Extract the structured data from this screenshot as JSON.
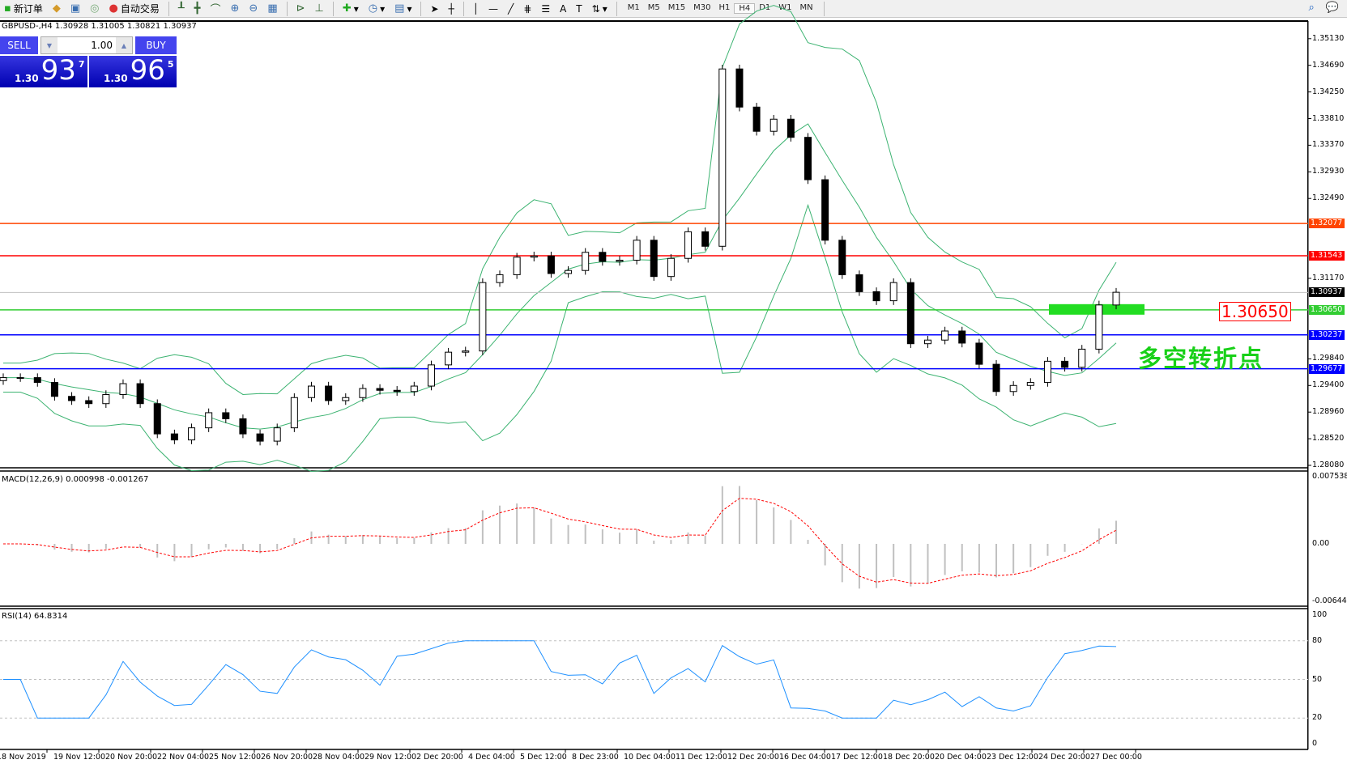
{
  "toolbar": {
    "new_order": "新订单",
    "auto_trading": "自动交易",
    "timeframes": [
      "M1",
      "M5",
      "M15",
      "M30",
      "H1",
      "H4",
      "D1",
      "W1",
      "MN"
    ],
    "active_timeframe": "H4"
  },
  "chart": {
    "symbol_header": "GBPUSD-,H4  1.30928 1.31005 1.30821 1.30937",
    "sell_label": "SELL",
    "buy_label": "BUY",
    "lot": "1.00",
    "sell_price": {
      "prefix": "1.30",
      "big": "93",
      "sup": "7"
    },
    "buy_price": {
      "prefix": "1.30",
      "big": "96",
      "sup": "5"
    },
    "annotation_price": "1.30650",
    "annotation_text": "多空转折点",
    "macd_label": "MACD(12,26,9) 0.000998 -0.001267",
    "rsi_label": "RSI(14) 64.8314"
  },
  "chart_data": {
    "type": "candlestick",
    "symbol": "GBPUSD",
    "timeframe": "H4",
    "closes": [
      1.2953,
      1.2953,
      1.2945,
      1.2922,
      1.2915,
      1.291,
      1.2925,
      1.2943,
      1.291,
      1.286,
      1.285,
      1.287,
      1.2895,
      1.2885,
      1.286,
      1.2848,
      1.287,
      1.292,
      1.2939,
      1.2915,
      1.292,
      1.2935,
      1.2932,
      1.293,
      1.2939,
      1.2974,
      1.2995,
      1.2997,
      1.311,
      1.3123,
      1.3152,
      1.3154,
      1.3125,
      1.313,
      1.316,
      1.3145,
      1.3147,
      1.318,
      1.312,
      1.315,
      1.3194,
      1.317,
      1.3463,
      1.34,
      1.336,
      1.338,
      1.335,
      1.328,
      1.318,
      1.3123,
      1.3095,
      1.308,
      1.311,
      1.3009,
      1.3015,
      1.303,
      1.301,
      1.2975,
      1.293,
      1.294,
      1.2945,
      1.298,
      1.297,
      1.3,
      1.3073,
      1.3094
    ],
    "price_ticks": [
      "1.35130",
      "1.34690",
      "1.34250",
      "1.33810",
      "1.33370",
      "1.32930",
      "1.32490",
      "1.31170",
      "1.29840",
      "1.29400",
      "1.28960",
      "1.28520",
      "1.28080"
    ],
    "time_ticks": [
      "18 Nov 2019",
      "19 Nov 12:00",
      "20 Nov 20:00",
      "22 Nov 04:00",
      "25 Nov 12:00",
      "26 Nov 20:00",
      "28 Nov 04:00",
      "29 Nov 12:00",
      "2 Dec 20:00",
      "4 Dec 04:00",
      "5 Dec 12:00",
      "8 Dec 23:00",
      "10 Dec 04:00",
      "11 Dec 12:00",
      "12 Dec 20:00",
      "16 Dec 04:00",
      "17 Dec 12:00",
      "18 Dec 20:00",
      "20 Dec 04:00",
      "23 Dec 12:00",
      "24 Dec 20:00",
      "27 Dec 00:00"
    ],
    "hlines": [
      {
        "price": "1.32077",
        "color": "#ff4500"
      },
      {
        "price": "1.31543",
        "color": "#ff0000"
      },
      {
        "price": "1.30650",
        "color": "#32cd32"
      },
      {
        "price": "1.30237",
        "color": "#0000ff"
      },
      {
        "price": "1.29677",
        "color": "#0000ff"
      }
    ],
    "current_price": "1.30937",
    "macd_axis": [
      "0.007538",
      "0.00",
      "-0.006446"
    ],
    "rsi_axis": [
      "100",
      "80",
      "50",
      "20",
      "0"
    ],
    "rsi_levels": [
      80,
      50,
      20
    ],
    "colors": {
      "bollinger": "#3cb371",
      "macd_hist": "#c0c0c0",
      "macd_signal": "#ff0000",
      "rsi": "#1e90ff",
      "zone": "#22dd22"
    }
  }
}
